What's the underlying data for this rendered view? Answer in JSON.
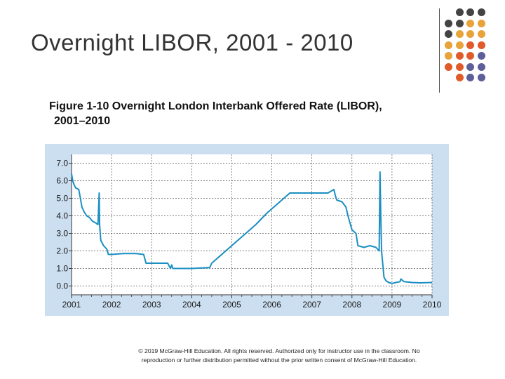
{
  "title": "Overnight LIBOR, 2001 - 2010",
  "caption": {
    "line1": "Figure 1-10 Overnight London Interbank Offered Rate (LIBOR),",
    "line2": "2001–2010"
  },
  "copyright": {
    "line1": "© 2019 McGraw-Hill Education. All rights reserved. Authorized only for instructor use in the classroom. No",
    "line2": "reproduction or further distribution permitted without the prior written consent of McGraw-Hill Education."
  },
  "decoration": {
    "dot_rows": [
      [
        "#444444",
        "#444444",
        "#444444"
      ],
      [
        "#444444",
        "#444444",
        "#e8a33a",
        "#e8a33a"
      ],
      [
        "#444444",
        "#e8a33a",
        "#e8a33a",
        "#e8a33a"
      ],
      [
        "#e8a33a",
        "#e8a33a",
        "#e05a2a",
        "#e05a2a"
      ],
      [
        "#e8a33a",
        "#e05a2a",
        "#e05a2a",
        "#5e5e99"
      ],
      [
        "#e05a2a",
        "#e05a2a",
        "#5e5e99",
        "#5e5e99"
      ],
      [
        "#e05a2a",
        "#5e5e99",
        "#5e5e99"
      ]
    ]
  },
  "colors": {
    "chart_background": "#ccdff1",
    "plot_background": "#ffffff",
    "line": "#1a8fc2",
    "grid": "#555555"
  },
  "chart_data": {
    "type": "line",
    "title": "",
    "xlabel": "",
    "ylabel": "",
    "xlim": [
      2001.0,
      2010.0
    ],
    "ylim": [
      -0.5,
      7.5
    ],
    "grid": true,
    "x_ticks": [
      2001,
      2002,
      2003,
      2004,
      2005,
      2006,
      2007,
      2008,
      2009,
      2010
    ],
    "x_tick_labels": [
      "2001",
      "2002",
      "2003",
      "2004",
      "2005",
      "2006",
      "2007",
      "2008",
      "2009",
      "2010"
    ],
    "y_ticks": [
      0,
      1,
      2,
      3,
      4,
      5,
      6,
      7
    ],
    "y_tick_labels": [
      "0.0",
      "1.0",
      "2.0",
      "3.0",
      "4.0",
      "5.0",
      "6.0",
      "7.0"
    ],
    "series": [
      {
        "name": "Overnight LIBOR",
        "points": [
          [
            2001.0,
            6.4
          ],
          [
            2001.03,
            6.0
          ],
          [
            2001.06,
            5.8
          ],
          [
            2001.1,
            5.6
          ],
          [
            2001.18,
            5.5
          ],
          [
            2001.22,
            5.0
          ],
          [
            2001.26,
            4.5
          ],
          [
            2001.32,
            4.2
          ],
          [
            2001.38,
            4.0
          ],
          [
            2001.45,
            3.9
          ],
          [
            2001.52,
            3.7
          ],
          [
            2001.6,
            3.6
          ],
          [
            2001.66,
            3.5
          ],
          [
            2001.69,
            5.3
          ],
          [
            2001.7,
            3.5
          ],
          [
            2001.73,
            2.6
          ],
          [
            2001.8,
            2.3
          ],
          [
            2001.84,
            2.2
          ],
          [
            2001.88,
            2.1
          ],
          [
            2001.92,
            1.8
          ],
          [
            2002.0,
            1.8
          ],
          [
            2002.3,
            1.85
          ],
          [
            2002.6,
            1.85
          ],
          [
            2002.8,
            1.8
          ],
          [
            2002.86,
            1.3
          ],
          [
            2003.0,
            1.3
          ],
          [
            2003.4,
            1.3
          ],
          [
            2003.47,
            1.0
          ],
          [
            2003.5,
            1.2
          ],
          [
            2003.53,
            1.0
          ],
          [
            2004.0,
            1.0
          ],
          [
            2004.45,
            1.05
          ],
          [
            2004.5,
            1.3
          ],
          [
            2004.8,
            1.9
          ],
          [
            2005.0,
            2.3
          ],
          [
            2005.3,
            2.9
          ],
          [
            2005.6,
            3.5
          ],
          [
            2005.9,
            4.2
          ],
          [
            2006.1,
            4.6
          ],
          [
            2006.3,
            5.0
          ],
          [
            2006.45,
            5.3
          ],
          [
            2006.7,
            5.3
          ],
          [
            2007.0,
            5.3
          ],
          [
            2007.4,
            5.3
          ],
          [
            2007.55,
            5.5
          ],
          [
            2007.58,
            5.2
          ],
          [
            2007.62,
            4.9
          ],
          [
            2007.75,
            4.8
          ],
          [
            2007.85,
            4.5
          ],
          [
            2007.9,
            4.0
          ],
          [
            2008.0,
            3.2
          ],
          [
            2008.1,
            3.0
          ],
          [
            2008.15,
            2.3
          ],
          [
            2008.3,
            2.2
          ],
          [
            2008.45,
            2.3
          ],
          [
            2008.6,
            2.2
          ],
          [
            2008.68,
            2.0
          ],
          [
            2008.7,
            6.5
          ],
          [
            2008.72,
            4.0
          ],
          [
            2008.74,
            2.0
          ],
          [
            2008.78,
            1.0
          ],
          [
            2008.8,
            0.5
          ],
          [
            2008.85,
            0.3
          ],
          [
            2008.92,
            0.2
          ],
          [
            2009.0,
            0.15
          ],
          [
            2009.1,
            0.2
          ],
          [
            2009.2,
            0.25
          ],
          [
            2009.22,
            0.4
          ],
          [
            2009.3,
            0.25
          ],
          [
            2009.5,
            0.2
          ],
          [
            2009.7,
            0.18
          ],
          [
            2010.0,
            0.2
          ]
        ]
      }
    ]
  }
}
